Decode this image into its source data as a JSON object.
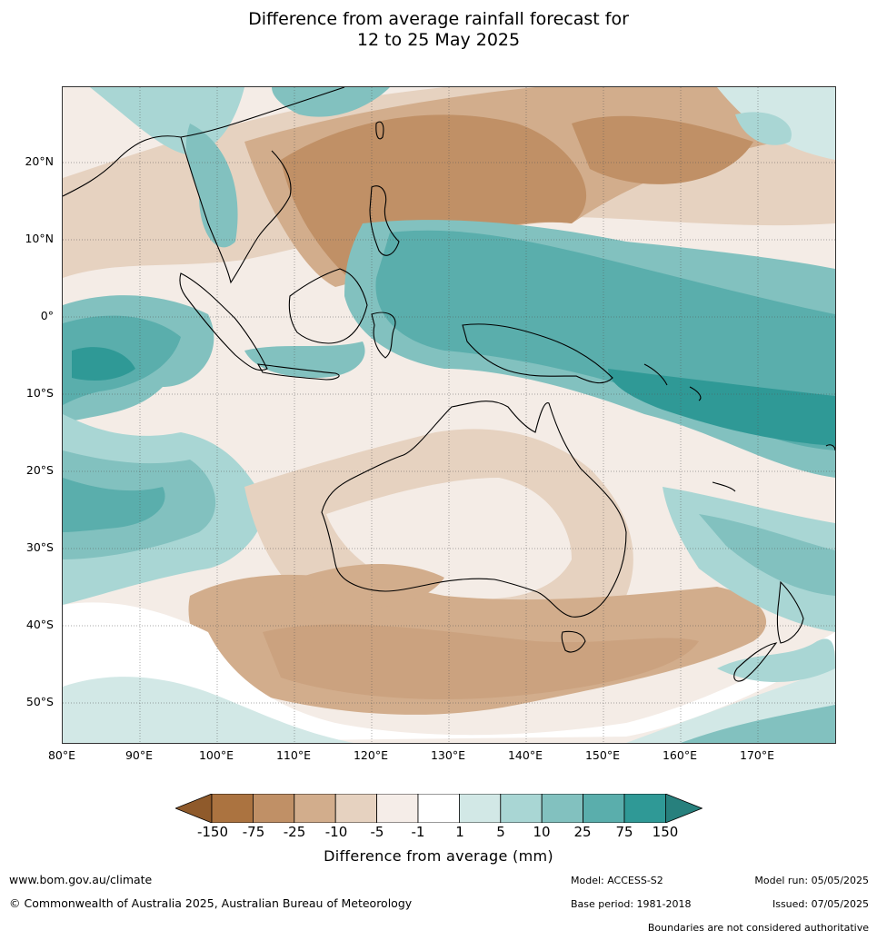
{
  "title_line1": "Difference from average rainfall forecast for",
  "title_line2": "12 to 25 May 2025",
  "lat_labels": [
    "20°N",
    "10°N",
    "0°",
    "10°S",
    "20°S",
    "30°S",
    "40°S",
    "50°S"
  ],
  "lon_labels": [
    "80°E",
    "90°E",
    "100°E",
    "110°E",
    "120°E",
    "130°E",
    "140°E",
    "150°E",
    "160°E",
    "170°E"
  ],
  "colorbar": {
    "labels": [
      "-150",
      "-75",
      "-25",
      "-10",
      "-5",
      "-1",
      "1",
      "5",
      "10",
      "25",
      "75",
      "150"
    ],
    "colors": [
      "#8f5a2b",
      "#ab7340",
      "#c09066",
      "#d2ad8c",
      "#e6d2c0",
      "#f5ede8",
      "#ffffff",
      "#d2e8e6",
      "#a9d6d4",
      "#82c1bf",
      "#5aaeac",
      "#2f9996",
      "#27807d"
    ],
    "title": "Difference from average (mm)"
  },
  "footer": {
    "website": "www.bom.gov.au/climate",
    "copyright": "© Commonwealth of Australia 2025, Australian Bureau of Meteorology",
    "model": "Model: ACCESS-S2",
    "base_period": "Base period: 1981-2018",
    "model_run": "Model run: 05/05/2025",
    "issued": "Issued: 07/05/2025",
    "disclaimer": "Boundaries are not considered authoritative"
  }
}
